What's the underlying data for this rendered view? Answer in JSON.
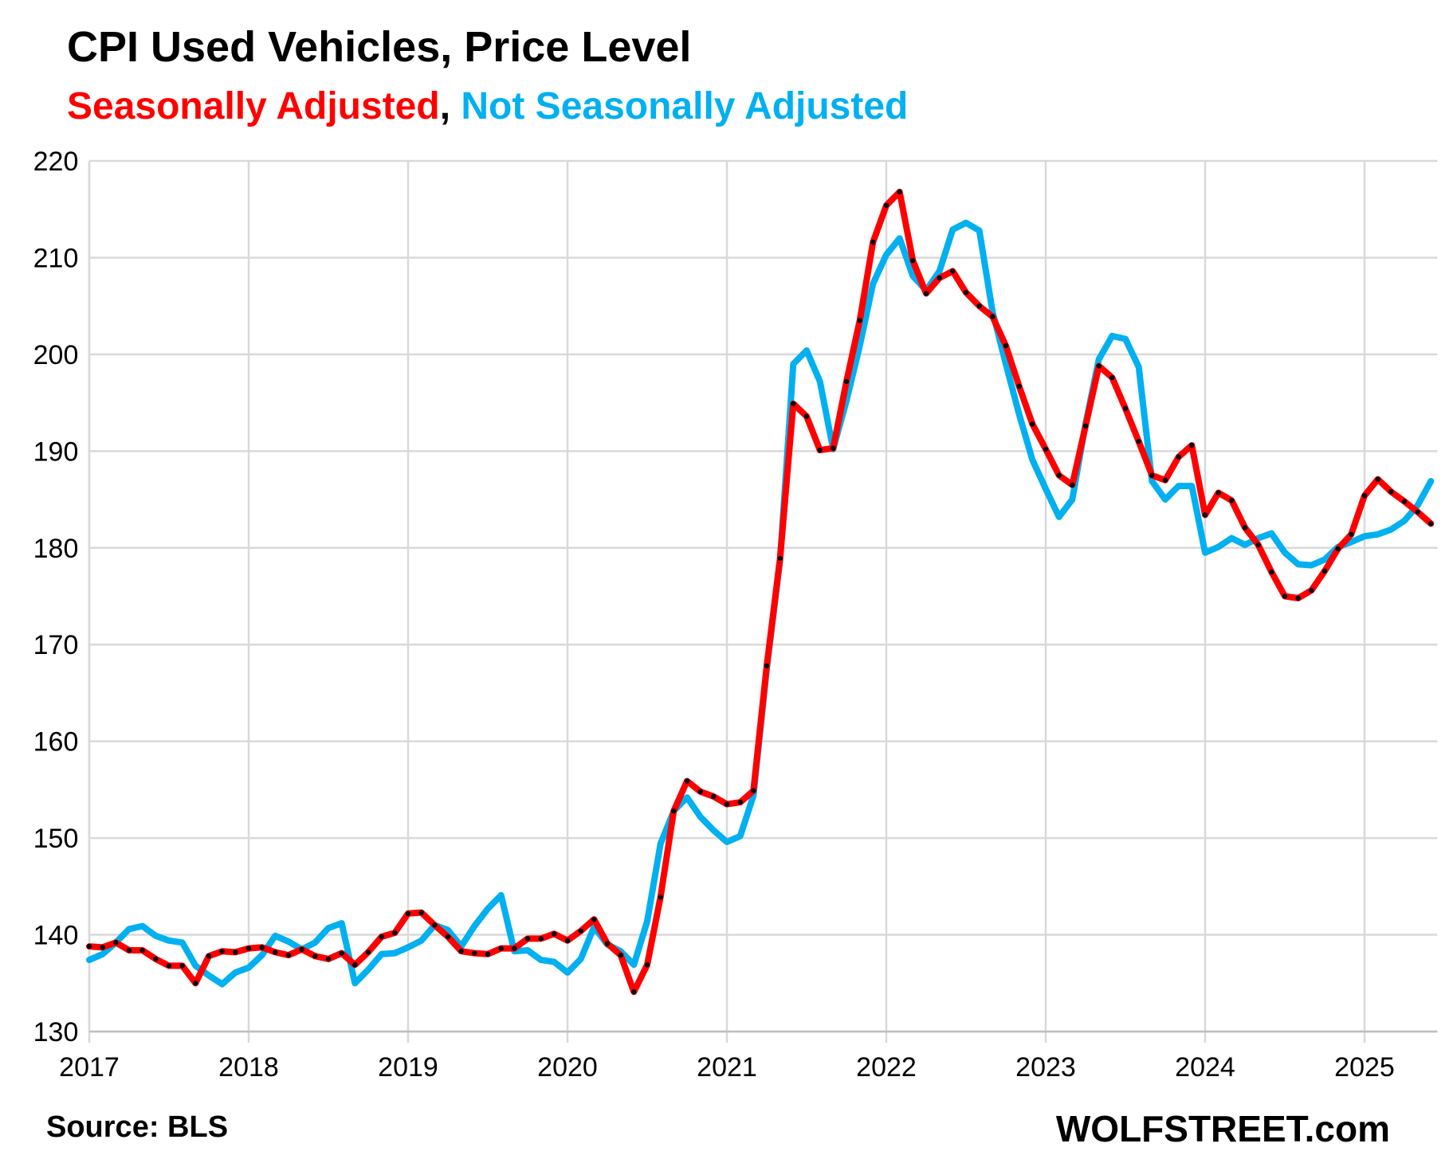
{
  "colors": {
    "sa": "#ff0000",
    "nsa": "#00b0f0",
    "marker": "#000000",
    "grid": "#d9d9d9",
    "text": "#000000"
  },
  "header": {
    "title": "CPI Used Vehicles, Price Level",
    "subtitle_sa": "Seasonally Adjusted",
    "subtitle_sep": ", ",
    "subtitle_nsa": "Not Seasonally Adjusted"
  },
  "footer": {
    "source": "Source: BLS",
    "brand": "WOLFSTREET.com"
  },
  "chart_data": {
    "type": "line",
    "title": "CPI Used Vehicles, Price Level",
    "subtitle": "Seasonally Adjusted, Not Seasonally Adjusted",
    "xlabel": "",
    "ylabel": "",
    "ylim": [
      130,
      220
    ],
    "yticks": [
      130,
      140,
      150,
      160,
      170,
      180,
      190,
      200,
      210,
      220
    ],
    "xlim": [
      "2017-01",
      "2025-06"
    ],
    "xticks": [
      "2017",
      "2018",
      "2019",
      "2020",
      "2021",
      "2022",
      "2023",
      "2024",
      "2025"
    ],
    "grid": true,
    "x_frequency": "monthly",
    "x_start": "2017-01",
    "series": [
      {
        "name": "Seasonally Adjusted",
        "color": "#ff0000",
        "markers": true,
        "values": [
          138.8,
          138.7,
          139.2,
          138.4,
          138.4,
          137.5,
          136.8,
          136.8,
          135.0,
          137.8,
          138.3,
          138.2,
          138.6,
          138.7,
          138.2,
          137.9,
          138.5,
          137.8,
          137.5,
          138.1,
          136.9,
          138.2,
          139.8,
          140.2,
          142.2,
          142.3,
          141.0,
          139.8,
          138.3,
          138.1,
          138.0,
          138.6,
          138.6,
          139.6,
          139.6,
          140.1,
          139.4,
          140.4,
          141.6,
          139.1,
          137.9,
          134.1,
          136.9,
          143.9,
          152.8,
          155.9,
          154.8,
          154.3,
          153.5,
          153.7,
          154.9,
          167.8,
          178.9,
          194.9,
          193.6,
          190.1,
          190.3,
          197.2,
          203.5,
          211.6,
          215.4,
          216.8,
          209.7,
          206.3,
          207.9,
          208.6,
          206.4,
          205.0,
          203.9,
          200.9,
          196.7,
          192.8,
          190.2,
          187.5,
          186.5,
          192.6,
          198.8,
          197.6,
          194.4,
          191.0,
          187.5,
          187.0,
          189.4,
          190.6,
          183.4,
          185.7,
          184.9,
          182.1,
          180.3,
          177.5,
          175.0,
          174.8,
          175.6,
          177.6,
          179.9,
          181.4,
          185.4,
          187.1,
          185.8,
          184.8,
          183.7,
          182.5
        ]
      },
      {
        "name": "Not Seasonally Adjusted",
        "color": "#00b0f0",
        "markers": false,
        "values": [
          137.4,
          138.0,
          139.2,
          140.6,
          140.9,
          139.9,
          139.4,
          139.2,
          136.8,
          135.8,
          134.9,
          136.1,
          136.6,
          137.9,
          139.9,
          139.3,
          138.5,
          139.2,
          140.7,
          141.2,
          135.0,
          136.4,
          138.0,
          138.1,
          138.7,
          139.4,
          141.0,
          140.5,
          138.8,
          140.9,
          142.7,
          144.1,
          138.3,
          138.4,
          137.4,
          137.2,
          136.1,
          137.5,
          140.8,
          139.0,
          138.3,
          136.9,
          141.4,
          149.4,
          152.8,
          154.2,
          152.2,
          150.8,
          149.6,
          150.2,
          154.4,
          167.5,
          178.7,
          199.0,
          200.4,
          197.2,
          190.2,
          195.2,
          200.9,
          207.3,
          210.3,
          212.0,
          208.1,
          206.6,
          208.6,
          212.9,
          213.6,
          212.8,
          204.4,
          199.0,
          193.8,
          189.1,
          186.1,
          183.2,
          185.0,
          192.8,
          199.5,
          201.9,
          201.6,
          198.7,
          186.9,
          185.0,
          186.4,
          186.4,
          179.5,
          180.1,
          181.0,
          180.3,
          181.0,
          181.5,
          179.5,
          178.3,
          178.2,
          178.8,
          180.1,
          180.6,
          181.2,
          181.4,
          181.9,
          182.8,
          184.4,
          186.9
        ]
      }
    ]
  }
}
